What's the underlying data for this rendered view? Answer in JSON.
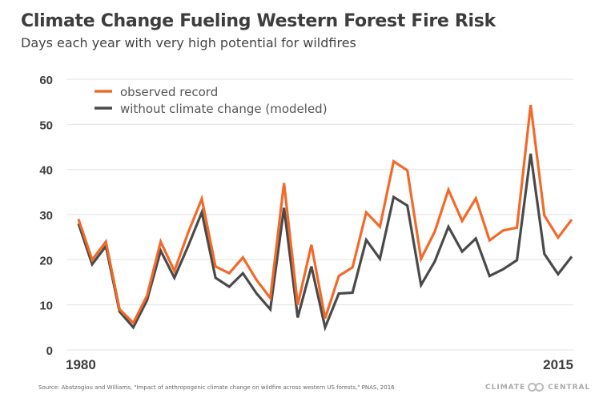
{
  "title": "Climate Change Fueling Western Forest Fire Risk",
  "subtitle": "Days each year with very high potential for wildfires",
  "source": "Source: Abatzoglou and Williams, \"Impact of anthropogenic climate change on wildfire across western US forests,\" PNAS, 2016",
  "logo": {
    "left": "CLIMATE",
    "right": "CENTRAL"
  },
  "chart_data": {
    "type": "line",
    "title": "Climate Change Fueling Western Forest Fire Risk",
    "subtitle": "Days each year with very high potential for wildfires",
    "xlabel": "",
    "ylabel": "",
    "ylim": [
      0,
      60
    ],
    "yticks": [
      "0",
      "10",
      "20",
      "30",
      "40",
      "50",
      "60"
    ],
    "xtick_labels": [
      "1980",
      "2015"
    ],
    "grid": "horizontal",
    "legend": "top-left",
    "series": [
      {
        "name": "observed record",
        "color": "#f26a2a",
        "values": [
          29,
          20,
          24,
          9,
          6,
          12,
          24,
          17.5,
          26,
          33.5,
          18.5,
          17,
          20.5,
          15.5,
          11.5,
          37,
          10,
          23.3,
          7,
          16.4,
          18.3,
          30.5,
          27.3,
          41.8,
          39.8,
          20.2,
          26.2,
          35.5,
          28.6,
          33.6,
          24.3,
          26.5,
          27.1,
          54.3,
          29.8,
          24.9,
          28.9
        ]
      },
      {
        "name": "without climate change (modeled)",
        "color": "#4a4a4a",
        "values": [
          28,
          19,
          23,
          8.5,
          5,
          11,
          22,
          16,
          23,
          30.5,
          16,
          14,
          17,
          12.5,
          9,
          31.5,
          7.2,
          18.5,
          5,
          12.5,
          12.7,
          24.4,
          20.2,
          33.9,
          32,
          14.4,
          19.6,
          27.3,
          21.8,
          24.7,
          16.4,
          17.9,
          19.9,
          43.5,
          21.3,
          16.8,
          20.7
        ]
      }
    ]
  }
}
